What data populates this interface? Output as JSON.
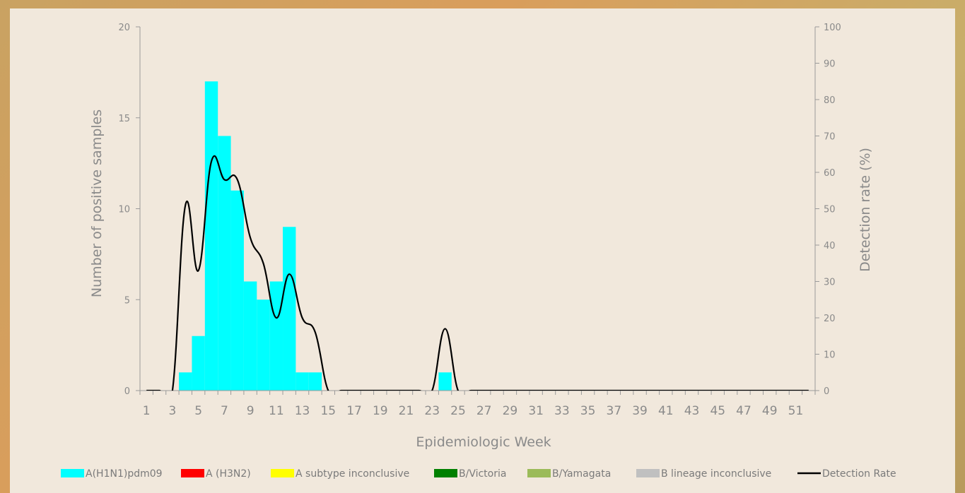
{
  "chart_data": {
    "type": "bar",
    "x_axis": {
      "label": "Epidemiologic Week",
      "weeks": [
        1,
        2,
        3,
        4,
        5,
        6,
        7,
        8,
        9,
        10,
        11,
        12,
        13,
        14,
        15,
        16,
        17,
        18,
        19,
        20,
        21,
        22,
        23,
        24,
        25,
        26,
        27,
        28,
        29,
        30,
        31,
        32,
        33,
        34,
        35,
        36,
        37,
        38,
        39,
        40,
        41,
        42,
        43,
        44,
        45,
        46,
        47,
        48,
        49,
        50,
        51,
        52
      ],
      "tick_labels": [
        "1",
        "3",
        "5",
        "7",
        "9",
        "11",
        "13",
        "15",
        "17",
        "19",
        "21",
        "23",
        "25",
        "27",
        "29",
        "31",
        "33",
        "35",
        "37",
        "39",
        "41",
        "43",
        "45",
        "47",
        "49",
        "51"
      ]
    },
    "y_axis_left": {
      "label": "Number of positive samples",
      "ylim": [
        0,
        20
      ],
      "ticks": [
        0,
        5,
        10,
        15,
        20
      ]
    },
    "y_axis_right": {
      "label": "Detection rate (%)",
      "ylim": [
        0,
        100
      ],
      "ticks": [
        0,
        10,
        20,
        30,
        40,
        50,
        60,
        70,
        80,
        90,
        100
      ]
    },
    "series": [
      {
        "name": "A(H1N1)pdm09",
        "kind": "bar",
        "color": "#00ffff",
        "values": [
          0,
          0,
          0,
          1,
          3,
          17,
          14,
          11,
          6,
          5,
          6,
          9,
          1,
          1,
          0,
          0,
          0,
          0,
          0,
          0,
          0,
          0,
          0,
          1,
          0,
          0,
          0,
          0,
          0,
          0,
          0,
          0,
          0,
          0,
          0,
          0,
          0,
          0,
          0,
          0,
          0,
          0,
          0,
          0,
          0,
          0,
          0,
          0,
          0,
          0,
          0,
          0
        ]
      },
      {
        "name": "A (H3N2)",
        "kind": "bar",
        "color": "#ff0000",
        "values": []
      },
      {
        "name": "A subtype inconclusive",
        "kind": "bar",
        "color": "#ffff00",
        "values": []
      },
      {
        "name": "B/Victoria",
        "kind": "bar",
        "color": "#008000",
        "values": []
      },
      {
        "name": "B/Yamagata",
        "kind": "bar",
        "color": "#9bbb59",
        "values": []
      },
      {
        "name": "B lineage inconclusive",
        "kind": "bar",
        "color": "#c0c0c0",
        "values": []
      },
      {
        "name": "Detection Rate",
        "kind": "line",
        "color": "#000000",
        "axis": "right",
        "values": [
          0,
          0,
          0,
          51,
          33,
          63,
          58,
          58,
          42,
          35,
          20,
          32,
          20,
          16,
          0,
          0,
          0,
          0,
          0,
          0,
          0,
          0,
          0,
          17,
          0,
          0,
          0,
          0,
          0,
          0,
          0,
          0,
          0,
          0,
          0,
          0,
          0,
          0,
          0,
          0,
          0,
          0,
          0,
          0,
          0,
          0,
          0,
          0,
          0,
          0,
          0,
          0
        ]
      }
    ],
    "grid": false,
    "legend_position": "bottom"
  }
}
